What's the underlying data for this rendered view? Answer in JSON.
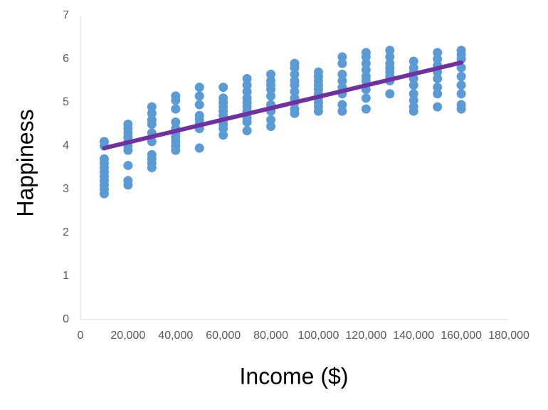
{
  "chart_data": {
    "type": "scatter",
    "x_label": "Income ($)",
    "y_label": "Happiness",
    "xlim": [
      0,
      180000
    ],
    "ylim": [
      0,
      7
    ],
    "xticks": [
      0,
      {
        "value": 20000,
        "label": "20,000"
      },
      {
        "value": 40000,
        "label": "40,000"
      },
      {
        "value": 60000,
        "label": "60,000"
      },
      {
        "value": 80000,
        "label": "80,000"
      },
      {
        "value": 100000,
        "label": "100,000"
      },
      {
        "value": 120000,
        "label": "120,000"
      },
      {
        "value": 140000,
        "label": "140,000"
      },
      {
        "value": 160000,
        "label": "160,000"
      },
      {
        "value": 180000,
        "label": "180,000"
      }
    ],
    "yticks": [
      0,
      1,
      2,
      3,
      4,
      5,
      6,
      7
    ],
    "grid": false,
    "series": [
      {
        "color": "#5b9bd5",
        "x": [
          10000,
          10000,
          10000,
          10000,
          10000,
          10000,
          10000,
          10000,
          10000,
          10000,
          10000,
          20000,
          20000,
          20000,
          20000,
          20000,
          20000,
          20000,
          20000,
          20000,
          20000,
          30000,
          30000,
          30000,
          30000,
          30000,
          30000,
          30000,
          30000,
          30000,
          30000,
          40000,
          40000,
          40000,
          40000,
          40000,
          40000,
          40000,
          40000,
          40000,
          40000,
          50000,
          50000,
          50000,
          50000,
          50000,
          50000,
          50000,
          50000,
          60000,
          60000,
          60000,
          60000,
          60000,
          60000,
          60000,
          60000,
          60000,
          60000,
          70000,
          70000,
          70000,
          70000,
          70000,
          70000,
          70000,
          70000,
          70000,
          70000,
          80000,
          80000,
          80000,
          80000,
          80000,
          80000,
          80000,
          80000,
          80000,
          90000,
          90000,
          90000,
          90000,
          90000,
          90000,
          90000,
          90000,
          90000,
          90000,
          100000,
          100000,
          100000,
          100000,
          100000,
          100000,
          100000,
          100000,
          100000,
          100000,
          110000,
          110000,
          110000,
          110000,
          110000,
          110000,
          110000,
          110000,
          120000,
          120000,
          120000,
          120000,
          120000,
          120000,
          120000,
          120000,
          120000,
          130000,
          130000,
          130000,
          130000,
          130000,
          130000,
          130000,
          130000,
          140000,
          140000,
          140000,
          140000,
          140000,
          140000,
          140000,
          140000,
          140000,
          150000,
          150000,
          150000,
          150000,
          150000,
          150000,
          150000,
          150000,
          160000,
          160000,
          160000,
          160000,
          160000,
          160000,
          160000,
          160000,
          160000
        ],
        "values": [
          2.9,
          3.0,
          3.1,
          3.2,
          3.3,
          3.4,
          3.5,
          3.6,
          3.7,
          4.0,
          4.1,
          3.1,
          3.2,
          3.55,
          3.9,
          4.0,
          4.1,
          4.2,
          4.3,
          4.4,
          4.5,
          3.5,
          3.6,
          3.7,
          3.8,
          4.1,
          4.3,
          4.5,
          4.6,
          4.75,
          4.9,
          3.9,
          4.0,
          4.1,
          4.2,
          4.3,
          4.4,
          4.55,
          4.85,
          5.05,
          5.15,
          3.95,
          4.4,
          4.5,
          4.6,
          4.7,
          4.95,
          5.15,
          5.35,
          4.25,
          4.4,
          4.5,
          4.6,
          4.7,
          4.8,
          4.9,
          5.0,
          5.1,
          5.35,
          4.35,
          4.55,
          4.65,
          4.8,
          4.9,
          5.0,
          5.1,
          5.25,
          5.4,
          5.55,
          4.45,
          4.6,
          4.8,
          4.95,
          5.15,
          5.3,
          5.4,
          5.5,
          5.65,
          4.75,
          4.85,
          5.0,
          5.1,
          5.25,
          5.4,
          5.5,
          5.65,
          5.8,
          5.9,
          4.8,
          4.9,
          5.0,
          5.1,
          5.2,
          5.3,
          5.4,
          5.5,
          5.6,
          5.7,
          4.8,
          4.95,
          5.2,
          5.35,
          5.5,
          5.65,
          5.9,
          6.05,
          4.85,
          5.1,
          5.3,
          5.5,
          5.6,
          5.75,
          5.9,
          6.05,
          6.15,
          5.2,
          5.5,
          5.6,
          5.7,
          5.8,
          5.9,
          6.05,
          6.2,
          4.8,
          4.9,
          5.05,
          5.2,
          5.4,
          5.55,
          5.7,
          5.8,
          5.95,
          4.9,
          5.2,
          5.35,
          5.55,
          5.7,
          5.85,
          6.0,
          6.15,
          4.85,
          4.95,
          5.2,
          5.4,
          5.6,
          5.8,
          6.0,
          6.1,
          6.2
        ]
      }
    ],
    "trendline": {
      "color": "#7030a0",
      "x": [
        10000,
        160000
      ],
      "values": [
        3.95,
        5.92
      ]
    }
  }
}
